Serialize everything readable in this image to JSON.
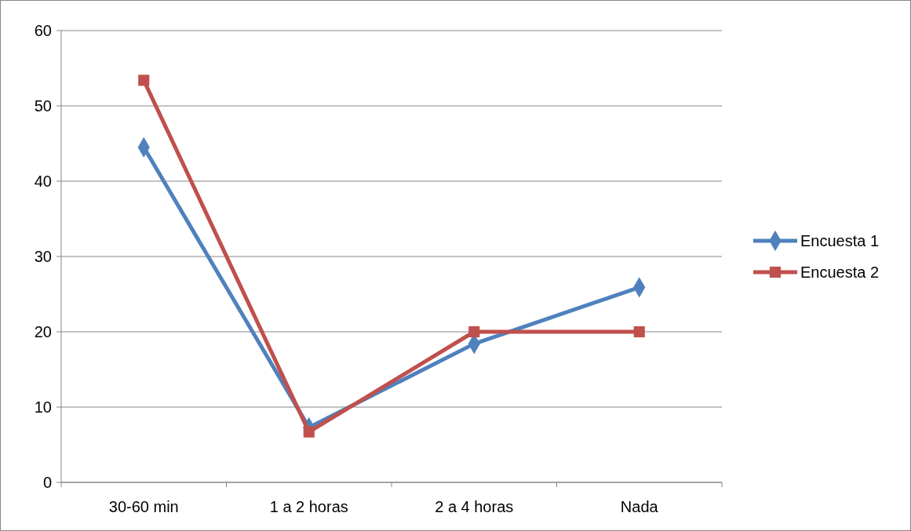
{
  "chart_data": {
    "type": "line",
    "categories": [
      "30-60 min",
      "1 a 2 horas",
      "2 a 4 horas",
      "Nada"
    ],
    "series": [
      {
        "name": "Encuesta 1",
        "color": "#4f81bd",
        "marker": "diamond",
        "values": [
          44.5,
          7.3,
          18.4,
          25.9
        ]
      },
      {
        "name": "Encuesta 2",
        "color": "#c0504d",
        "marker": "square",
        "values": [
          53.4,
          6.7,
          20,
          20
        ]
      }
    ],
    "ylim": [
      0,
      60
    ],
    "yticks": [
      0,
      10,
      20,
      30,
      40,
      50,
      60
    ],
    "grid": "y",
    "legend": "right"
  }
}
